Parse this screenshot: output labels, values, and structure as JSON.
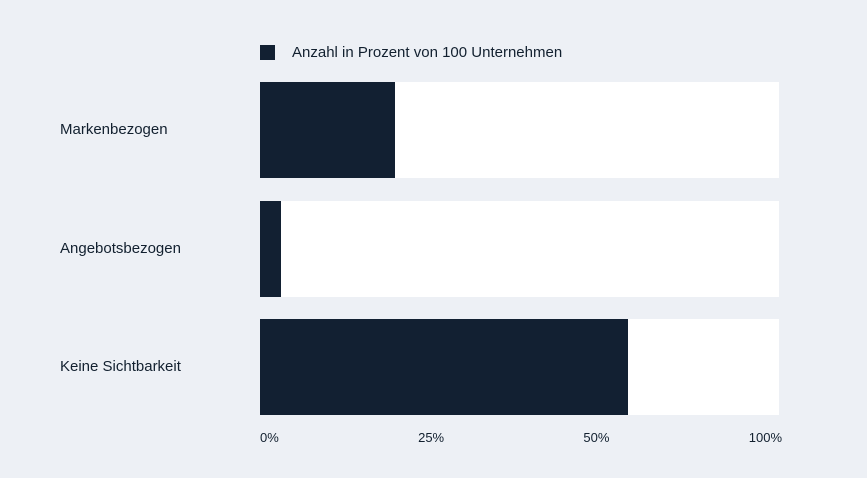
{
  "chart_data": {
    "type": "bar",
    "orientation": "horizontal",
    "categories": [
      "Markenbezogen",
      "Angebotsbezogen",
      "Keine Sichtbarkeit"
    ],
    "series": [
      {
        "name": "Anzahl in Prozent von 100 Unternehmen",
        "values": [
          26,
          4,
          71
        ],
        "color": "#122032"
      }
    ],
    "xlim": [
      0,
      100
    ],
    "tick_labels": [
      "0%",
      "25%",
      "50%",
      "100%"
    ],
    "legend_position": "top",
    "grid": false,
    "track_color": "#ffffff",
    "background": "#edf0f5"
  }
}
